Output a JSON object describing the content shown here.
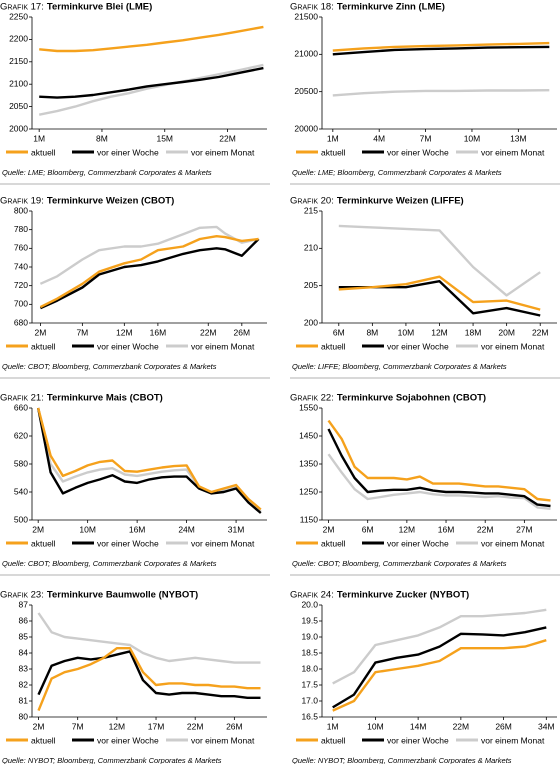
{
  "chart_data": [
    {
      "type": "line",
      "label": "Grafik 17:",
      "title": "Terminkurve Blei (LME)",
      "source": "Quelle: LME; Bloomberg, Commerzbank Corporates & Markets",
      "x": [
        1,
        3,
        5,
        7,
        9,
        11,
        13,
        15,
        17,
        19,
        21,
        23,
        26
      ],
      "xlim": [
        0.2,
        26.4
      ],
      "xticks": [
        {
          "value": 1,
          "label": "1M"
        },
        {
          "value": 8,
          "label": "8M"
        },
        {
          "value": 15,
          "label": "15M"
        },
        {
          "value": 22,
          "label": "22M"
        }
      ],
      "ylim": [
        2000,
        2250
      ],
      "yticks": [
        2000,
        2050,
        2100,
        2150,
        2200,
        2250
      ],
      "series": [
        {
          "name": "aktuell",
          "color": "#f5a11c",
          "values": [
            2178,
            2174,
            2174,
            2176,
            2180,
            2184,
            2188,
            2193,
            2198,
            2204,
            2210,
            2217,
            2228
          ]
        },
        {
          "name": "vor einer Woche",
          "color": "#000000",
          "values": [
            2072,
            2070,
            2072,
            2076,
            2082,
            2088,
            2095,
            2100,
            2105,
            2110,
            2116,
            2124,
            2136
          ]
        },
        {
          "name": "vor einem Monat",
          "color": "#cccccc",
          "values": [
            2032,
            2040,
            2050,
            2062,
            2072,
            2080,
            2090,
            2098,
            2106,
            2114,
            2122,
            2130,
            2143
          ]
        }
      ]
    },
    {
      "type": "line",
      "label": "Grafik 18:",
      "title": "Terminkurve Zinn (LME)",
      "source": "Quelle: LME; Bloomberg, Commerzbank Corporates & Markets",
      "x": [
        1,
        3,
        5,
        7,
        9,
        11,
        13,
        15
      ],
      "xlim": [
        0.3,
        15.5
      ],
      "xticks": [
        {
          "value": 1,
          "label": "1M"
        },
        {
          "value": 4,
          "label": "4M"
        },
        {
          "value": 7,
          "label": "7M"
        },
        {
          "value": 10,
          "label": "10M"
        },
        {
          "value": 13,
          "label": "13M"
        }
      ],
      "ylim": [
        20000,
        21500
      ],
      "yticks": [
        20000,
        20500,
        21000,
        21500
      ],
      "series": [
        {
          "name": "aktuell",
          "color": "#f5a11c",
          "values": [
            21050,
            21080,
            21100,
            21110,
            21120,
            21130,
            21140,
            21150
          ]
        },
        {
          "name": "vor einer Woche",
          "color": "#000000",
          "values": [
            21000,
            21030,
            21060,
            21070,
            21080,
            21090,
            21095,
            21100
          ]
        },
        {
          "name": "vor einem Monat",
          "color": "#cccccc",
          "values": [
            20450,
            20480,
            20500,
            20510,
            20510,
            20515,
            20515,
            20520
          ]
        }
      ]
    },
    {
      "type": "line",
      "label": "Grafik 19:",
      "title": "Terminkurve Weizen (CBOT)",
      "source": "Quelle: CBOT; Bloomberg, Commerzbank Corporates & Markets",
      "x": [
        2,
        4,
        7,
        9,
        12,
        14,
        16,
        19,
        21,
        23,
        24,
        26,
        28
      ],
      "xlim": [
        1,
        29
      ],
      "xticks": [
        {
          "value": 2,
          "label": "2M"
        },
        {
          "value": 7,
          "label": "7M"
        },
        {
          "value": 12,
          "label": "12M"
        },
        {
          "value": 16,
          "label": "16M"
        },
        {
          "value": 22,
          "label": "22M"
        },
        {
          "value": 26,
          "label": "26M"
        }
      ],
      "ylim": [
        680,
        800
      ],
      "yticks": [
        680,
        700,
        720,
        740,
        760,
        780,
        800
      ],
      "series": [
        {
          "name": "aktuell",
          "color": "#f5a11c",
          "values": [
            697,
            706,
            722,
            735,
            744,
            748,
            758,
            762,
            770,
            773,
            772,
            768,
            770
          ]
        },
        {
          "name": "vor einer Woche",
          "color": "#000000",
          "values": [
            696,
            704,
            718,
            732,
            740,
            742,
            746,
            754,
            758,
            760,
            759,
            752,
            770
          ]
        },
        {
          "name": "vor einem Monat",
          "color": "#cccccc",
          "values": [
            722,
            730,
            748,
            758,
            762,
            762,
            765,
            775,
            782,
            783,
            776,
            766,
            770
          ]
        }
      ]
    },
    {
      "type": "line",
      "label": "Grafik 20:",
      "title": "Terminkurve Weizen (LIFFE)",
      "source": "Quelle: LIFFE; Bloomberg, Commerzbank Corporates & Markets",
      "categories": [
        "6M",
        "8M",
        "10M",
        "12M",
        "18M",
        "20M",
        "22M"
      ],
      "ylim": [
        200,
        215
      ],
      "yticks": [
        200,
        205,
        210,
        215
      ],
      "series": [
        {
          "name": "aktuell",
          "color": "#f5a11c",
          "values": [
            204.5,
            204.8,
            205.2,
            206.2,
            202.8,
            203.0,
            201.8
          ]
        },
        {
          "name": "vor einer Woche",
          "color": "#000000",
          "values": [
            204.8,
            204.8,
            204.8,
            205.6,
            201.3,
            202.0,
            201.0
          ]
        },
        {
          "name": "vor einem Monat",
          "color": "#cccccc",
          "values": [
            213.0,
            212.8,
            212.6,
            212.4,
            207.5,
            203.7,
            206.8
          ]
        }
      ]
    },
    {
      "type": "line",
      "label": "Grafik 21:",
      "title": "Terminkurve Mais (CBOT)",
      "source": "Quelle: CBOT; Bloomberg, Commerzbank Corporates & Markets",
      "categories": [
        "2M",
        null,
        null,
        null,
        "10M",
        null,
        null,
        null,
        "16M",
        null,
        null,
        null,
        "24M",
        null,
        null,
        null,
        "31M",
        null,
        null
      ],
      "ylim": [
        500,
        660
      ],
      "yticks": [
        500,
        540,
        580,
        620,
        660
      ],
      "series": [
        {
          "name": "aktuell",
          "color": "#f5a11c",
          "values": [
            660,
            592,
            563,
            570,
            578,
            583,
            585,
            570,
            569,
            572,
            575,
            577,
            578,
            548,
            540,
            545,
            550,
            530,
            515
          ]
        },
        {
          "name": "vor einer Woche",
          "color": "#000000",
          "values": [
            660,
            568,
            538,
            546,
            553,
            558,
            564,
            555,
            553,
            558,
            561,
            562,
            562,
            545,
            538,
            540,
            545,
            525,
            510
          ]
        },
        {
          "name": "vor einem Monat",
          "color": "#cccccc",
          "values": [
            660,
            580,
            555,
            562,
            568,
            572,
            574,
            565,
            563,
            566,
            569,
            571,
            572,
            547,
            540,
            543,
            548,
            528,
            512
          ]
        }
      ]
    },
    {
      "type": "line",
      "label": "Grafik 22:",
      "title": "Terminkurve Sojabohnen (CBOT)",
      "source": "Quelle: CBOT; Bloomberg, Commerzbank Corporates & Markets",
      "categories": [
        "2M",
        null,
        null,
        "6M",
        null,
        null,
        "12M",
        null,
        null,
        "16M",
        null,
        null,
        "22M",
        null,
        null,
        "27M",
        null,
        null
      ],
      "ylim": [
        1150,
        1550
      ],
      "yticks": [
        1150,
        1250,
        1350,
        1450,
        1550
      ],
      "series": [
        {
          "name": "aktuell",
          "color": "#f5a11c",
          "values": [
            1505,
            1440,
            1340,
            1300,
            1300,
            1300,
            1295,
            1305,
            1280,
            1280,
            1280,
            1275,
            1270,
            1270,
            1265,
            1260,
            1225,
            1220
          ]
        },
        {
          "name": "vor einer Woche",
          "color": "#000000",
          "values": [
            1475,
            1380,
            1300,
            1250,
            1255,
            1258,
            1258,
            1265,
            1255,
            1250,
            1250,
            1248,
            1245,
            1245,
            1240,
            1235,
            1205,
            1200
          ]
        },
        {
          "name": "vor einem Monat",
          "color": "#cccccc",
          "values": [
            1385,
            1320,
            1260,
            1225,
            1232,
            1240,
            1245,
            1250,
            1242,
            1238,
            1238,
            1235,
            1232,
            1235,
            1230,
            1228,
            1195,
            1190
          ]
        }
      ]
    },
    {
      "type": "line",
      "label": "Grafik 23:",
      "title": "Terminkurve Baumwolle (NYBOT)",
      "source": "Quelle: NYBOT; Bloomberg, Commerzbank Corporates & Markets",
      "categories": [
        "2M",
        null,
        null,
        "7M",
        null,
        null,
        "12M",
        null,
        null,
        "17M",
        null,
        null,
        "22M",
        null,
        null,
        "26M",
        null,
        null
      ],
      "ylim": [
        80,
        87
      ],
      "yticks": [
        80,
        81,
        82,
        83,
        84,
        85,
        86,
        87
      ],
      "series": [
        {
          "name": "aktuell",
          "color": "#f5a11c",
          "values": [
            80.4,
            82.4,
            82.8,
            83.0,
            83.3,
            83.7,
            84.3,
            84.3,
            82.8,
            82.0,
            82.1,
            82.1,
            82.0,
            82.0,
            81.9,
            81.9,
            81.8,
            81.8
          ]
        },
        {
          "name": "vor einer Woche",
          "color": "#000000",
          "values": [
            81.4,
            83.2,
            83.5,
            83.7,
            83.6,
            83.7,
            83.9,
            84.1,
            82.3,
            81.5,
            81.4,
            81.5,
            81.5,
            81.4,
            81.3,
            81.3,
            81.2,
            81.2
          ]
        },
        {
          "name": "vor einem Monat",
          "color": "#cccccc",
          "values": [
            86.5,
            85.3,
            85.0,
            84.9,
            84.8,
            84.7,
            84.6,
            84.5,
            84.0,
            83.7,
            83.5,
            83.6,
            83.7,
            83.6,
            83.5,
            83.4,
            83.4,
            83.4
          ]
        }
      ]
    },
    {
      "type": "line",
      "label": "Grafik 24:",
      "title": "Terminkurve Zucker (NYBOT)",
      "source": "Quelle: NYBOT; Bloomberg, Commerzbank Corporates & Markets",
      "categories": [
        "1M",
        null,
        "10M",
        null,
        "14M",
        null,
        "22M",
        null,
        "26M",
        null,
        "34M"
      ],
      "ylim": [
        16.5,
        20
      ],
      "yticks": [
        16.5,
        {
          "value": 17,
          "label": "17.0"
        },
        17.5,
        {
          "value": 18,
          "label": "18.0"
        },
        18.5,
        {
          "value": 19,
          "label": "19.0"
        },
        19.5,
        {
          "value": 20,
          "label": "20.0"
        }
      ],
      "series": [
        {
          "name": "aktuell",
          "color": "#f5a11c",
          "values": [
            16.7,
            17.0,
            17.9,
            18.0,
            18.1,
            18.25,
            18.65,
            18.65,
            18.65,
            18.7,
            18.9
          ]
        },
        {
          "name": "vor einer Woche",
          "color": "#000000",
          "values": [
            16.8,
            17.2,
            18.2,
            18.35,
            18.45,
            18.7,
            19.1,
            19.08,
            19.05,
            19.15,
            19.3
          ]
        },
        {
          "name": "vor einem Monat",
          "color": "#cccccc",
          "values": [
            17.55,
            17.9,
            18.75,
            18.9,
            19.05,
            19.3,
            19.65,
            19.65,
            19.7,
            19.75,
            19.85
          ]
        }
      ]
    }
  ]
}
